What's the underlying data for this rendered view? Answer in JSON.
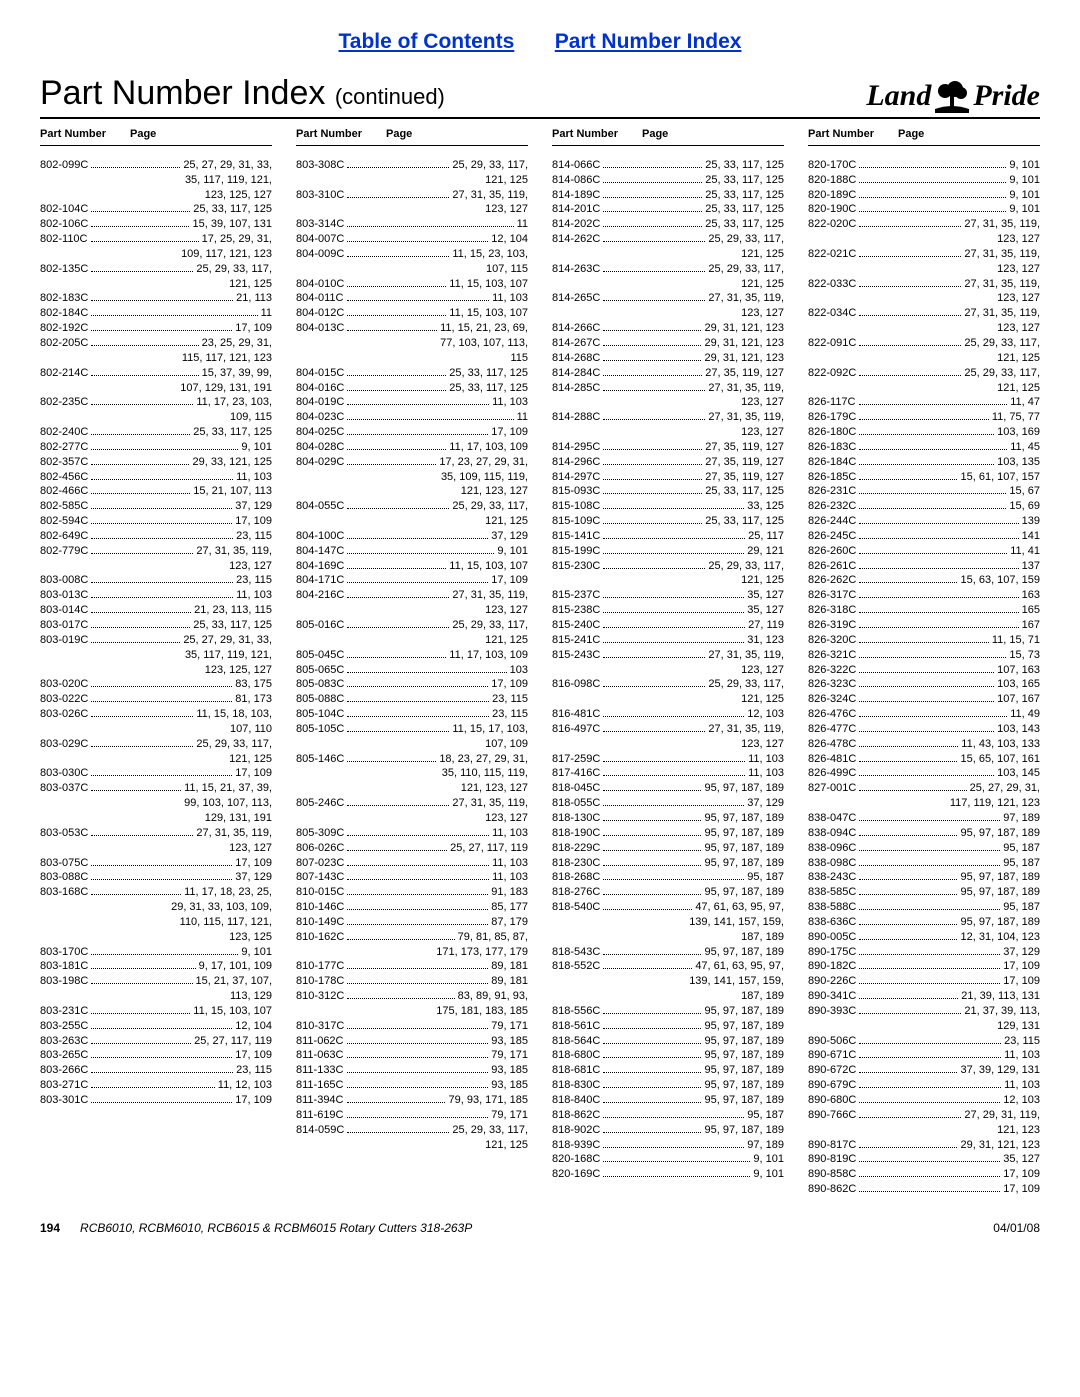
{
  "links": {
    "toc": "Table of Contents",
    "pni": "Part Number Index"
  },
  "title": "Part Number Index",
  "title_cont": "(continued)",
  "logo": {
    "left": "Land",
    "right": "Pride"
  },
  "column_header": {
    "pn": "Part Number",
    "pg": "Page"
  },
  "columns": [
    [
      {
        "pn": "802-099C",
        "pg": "25, 27, 29, 31, 33, 35, 117, 119, 121, 123, 125, 127"
      },
      {
        "pn": "802-104C",
        "pg": "25, 33, 117, 125"
      },
      {
        "pn": "802-106C",
        "pg": "15, 39, 107, 131"
      },
      {
        "pn": "802-110C",
        "pg": "17, 25, 29, 31, 109, 117, 121, 123"
      },
      {
        "pn": "802-135C",
        "pg": "25, 29, 33, 117, 121, 125"
      },
      {
        "pn": "802-183C",
        "pg": "21, 113"
      },
      {
        "pn": "802-184C",
        "pg": "11"
      },
      {
        "pn": "802-192C",
        "pg": "17, 109"
      },
      {
        "pn": "802-205C",
        "pg": "23, 25, 29, 31, 115, 117, 121, 123"
      },
      {
        "pn": "802-214C",
        "pg": "15, 37, 39, 99, 107, 129, 131, 191"
      },
      {
        "pn": "802-235C",
        "pg": "11, 17, 23, 103, 109, 115"
      },
      {
        "pn": "802-240C",
        "pg": "25, 33, 117, 125"
      },
      {
        "pn": "802-277C",
        "pg": "9, 101"
      },
      {
        "pn": "802-357C",
        "pg": "29, 33, 121, 125"
      },
      {
        "pn": "802-456C",
        "pg": "11, 103"
      },
      {
        "pn": "802-466C",
        "pg": "15, 21, 107, 113"
      },
      {
        "pn": "802-585C",
        "pg": "37, 129"
      },
      {
        "pn": "802-594C",
        "pg": "17, 109"
      },
      {
        "pn": "802-649C",
        "pg": "23, 115"
      },
      {
        "pn": "802-779C",
        "pg": "27, 31, 35, 119, 123, 127"
      },
      {
        "pn": "803-008C",
        "pg": "23, 115"
      },
      {
        "pn": "803-013C",
        "pg": "11, 103"
      },
      {
        "pn": "803-014C",
        "pg": "21, 23, 113, 115"
      },
      {
        "pn": "803-017C",
        "pg": "25, 33, 117, 125"
      },
      {
        "pn": "803-019C",
        "pg": "25, 27, 29, 31, 33, 35, 117, 119, 121, 123, 125, 127"
      },
      {
        "pn": "803-020C",
        "pg": "83, 175"
      },
      {
        "pn": "803-022C",
        "pg": "81, 173"
      },
      {
        "pn": "803-026C",
        "pg": "11, 15, 18, 103, 107, 110"
      },
      {
        "pn": "803-029C",
        "pg": "25, 29, 33, 117, 121, 125"
      },
      {
        "pn": "803-030C",
        "pg": "17, 109"
      },
      {
        "pn": "803-037C",
        "pg": "11, 15, 21, 37, 39, 99, 103, 107, 113, 129, 131, 191"
      },
      {
        "pn": "803-053C",
        "pg": "27, 31, 35, 119, 123, 127"
      },
      {
        "pn": "803-075C",
        "pg": "17, 109"
      },
      {
        "pn": "803-088C",
        "pg": "37, 129"
      },
      {
        "pn": "803-168C",
        "pg": "11, 17, 18, 23, 25, 29, 31, 33, 103, 109, 110, 115, 117, 121, 123, 125"
      },
      {
        "pn": "803-170C",
        "pg": "9, 101"
      },
      {
        "pn": "803-181C",
        "pg": "9, 17, 101, 109"
      },
      {
        "pn": "803-198C",
        "pg": "15, 21, 37, 107, 113, 129"
      },
      {
        "pn": "803-231C",
        "pg": "11, 15, 103, 107"
      },
      {
        "pn": "803-255C",
        "pg": "12, 104"
      },
      {
        "pn": "803-263C",
        "pg": "25, 27, 117, 119"
      },
      {
        "pn": "803-265C",
        "pg": "17, 109"
      },
      {
        "pn": "803-266C",
        "pg": "23, 115"
      },
      {
        "pn": "803-271C",
        "pg": "11, 12, 103"
      },
      {
        "pn": "803-301C",
        "pg": "17, 109"
      }
    ],
    [
      {
        "pn": "803-308C",
        "pg": "25, 29, 33, 117, 121, 125"
      },
      {
        "pn": "803-310C",
        "pg": "27, 31, 35, 119, 123, 127"
      },
      {
        "pn": "803-314C",
        "pg": "11"
      },
      {
        "pn": "804-007C",
        "pg": "12, 104"
      },
      {
        "pn": "804-009C",
        "pg": "11, 15, 23, 103, 107, 115"
      },
      {
        "pn": "804-010C",
        "pg": "11, 15, 103, 107"
      },
      {
        "pn": "804-011C",
        "pg": "11, 103"
      },
      {
        "pn": "804-012C",
        "pg": "11, 15, 103, 107"
      },
      {
        "pn": "804-013C",
        "pg": "11, 15, 21, 23, 69, 77, 103, 107, 113, 115"
      },
      {
        "pn": "804-015C",
        "pg": "25, 33, 117, 125"
      },
      {
        "pn": "804-016C",
        "pg": "25, 33, 117, 125"
      },
      {
        "pn": "804-019C",
        "pg": "11, 103"
      },
      {
        "pn": "804-023C",
        "pg": "11"
      },
      {
        "pn": "804-025C",
        "pg": "17, 109"
      },
      {
        "pn": "804-028C",
        "pg": "11, 17, 103, 109"
      },
      {
        "pn": "804-029C",
        "pg": "17, 23, 27, 29, 31, 35, 109, 115, 119, 121, 123, 127"
      },
      {
        "pn": "804-055C",
        "pg": "25, 29, 33, 117, 121, 125"
      },
      {
        "pn": "804-100C",
        "pg": "37, 129"
      },
      {
        "pn": "804-147C",
        "pg": "9, 101"
      },
      {
        "pn": "804-169C",
        "pg": "11, 15, 103, 107"
      },
      {
        "pn": "804-171C",
        "pg": "17, 109"
      },
      {
        "pn": "804-216C",
        "pg": "27, 31, 35, 119, 123, 127"
      },
      {
        "pn": "805-016C",
        "pg": "25, 29, 33, 117, 121, 125"
      },
      {
        "pn": "805-045C",
        "pg": "11, 17, 103, 109"
      },
      {
        "pn": "805-065C",
        "pg": "103"
      },
      {
        "pn": "805-083C",
        "pg": "17, 109"
      },
      {
        "pn": "805-088C",
        "pg": "23, 115"
      },
      {
        "pn": "805-104C",
        "pg": "23, 115"
      },
      {
        "pn": "805-105C",
        "pg": "11, 15, 17, 103, 107, 109"
      },
      {
        "pn": "805-146C",
        "pg": "18, 23, 27, 29, 31, 35, 110, 115, 119, 121, 123, 127"
      },
      {
        "pn": "805-246C",
        "pg": "27, 31, 35, 119, 123, 127"
      },
      {
        "pn": "805-309C",
        "pg": "11, 103"
      },
      {
        "pn": "806-026C",
        "pg": "25, 27, 117, 119"
      },
      {
        "pn": "807-023C",
        "pg": "11, 103"
      },
      {
        "pn": "807-143C",
        "pg": "11, 103"
      },
      {
        "pn": "810-015C",
        "pg": "91, 183"
      },
      {
        "pn": "810-146C",
        "pg": "85, 177"
      },
      {
        "pn": "810-149C",
        "pg": "87, 179"
      },
      {
        "pn": "810-162C",
        "pg": "79, 81, 85, 87, 171, 173, 177, 179"
      },
      {
        "pn": "810-177C",
        "pg": "89, 181"
      },
      {
        "pn": "810-178C",
        "pg": "89, 181"
      },
      {
        "pn": "810-312C",
        "pg": "83, 89, 91, 93, 175, 181, 183, 185"
      },
      {
        "pn": "810-317C",
        "pg": "79, 171"
      },
      {
        "pn": "811-062C",
        "pg": "93, 185"
      },
      {
        "pn": "811-063C",
        "pg": "79, 171"
      },
      {
        "pn": "811-133C",
        "pg": "93, 185"
      },
      {
        "pn": "811-165C",
        "pg": "93, 185"
      },
      {
        "pn": "811-394C",
        "pg": "79, 93, 171, 185"
      },
      {
        "pn": "811-619C",
        "pg": "79, 171"
      },
      {
        "pn": "814-059C",
        "pg": "25, 29, 33, 117, 121, 125"
      }
    ],
    [
      {
        "pn": "814-066C",
        "pg": "25, 33, 117, 125"
      },
      {
        "pn": "814-086C",
        "pg": "25, 33, 117, 125"
      },
      {
        "pn": "814-189C",
        "pg": "25, 33, 117, 125"
      },
      {
        "pn": "814-201C",
        "pg": "25, 33, 117, 125"
      },
      {
        "pn": "814-202C",
        "pg": "25, 33, 117, 125"
      },
      {
        "pn": "814-262C",
        "pg": "25, 29, 33, 117, 121, 125"
      },
      {
        "pn": "814-263C",
        "pg": "25, 29, 33, 117, 121, 125"
      },
      {
        "pn": "814-265C",
        "pg": "27, 31, 35, 119, 123, 127"
      },
      {
        "pn": "814-266C",
        "pg": "29, 31, 121, 123"
      },
      {
        "pn": "814-267C",
        "pg": "29, 31, 121, 123"
      },
      {
        "pn": "814-268C",
        "pg": "29, 31, 121, 123"
      },
      {
        "pn": "814-284C",
        "pg": "27, 35, 119, 127"
      },
      {
        "pn": "814-285C",
        "pg": "27, 31, 35, 119, 123, 127"
      },
      {
        "pn": "814-288C",
        "pg": "27, 31, 35, 119, 123, 127"
      },
      {
        "pn": "814-295C",
        "pg": "27, 35, 119, 127"
      },
      {
        "pn": "814-296C",
        "pg": "27, 35, 119, 127"
      },
      {
        "pn": "814-297C",
        "pg": "27, 35, 119, 127"
      },
      {
        "pn": "815-093C",
        "pg": "25, 33, 117, 125"
      },
      {
        "pn": "815-108C",
        "pg": "33, 125"
      },
      {
        "pn": "815-109C",
        "pg": "25, 33, 117, 125"
      },
      {
        "pn": "815-141C",
        "pg": "25, 117"
      },
      {
        "pn": "815-199C",
        "pg": "29, 121"
      },
      {
        "pn": "815-230C",
        "pg": "25, 29, 33, 117, 121, 125"
      },
      {
        "pn": "815-237C",
        "pg": "35, 127"
      },
      {
        "pn": "815-238C",
        "pg": "35, 127"
      },
      {
        "pn": "815-240C",
        "pg": "27, 119"
      },
      {
        "pn": "815-241C",
        "pg": "31, 123"
      },
      {
        "pn": "815-243C",
        "pg": "27, 31, 35, 119, 123, 127"
      },
      {
        "pn": "816-098C",
        "pg": "25, 29, 33, 117, 121, 125"
      },
      {
        "pn": "816-481C",
        "pg": "12, 103"
      },
      {
        "pn": "816-497C",
        "pg": "27, 31, 35, 119, 123, 127"
      },
      {
        "pn": "817-259C",
        "pg": "11, 103"
      },
      {
        "pn": "817-416C",
        "pg": "11, 103"
      },
      {
        "pn": "818-045C",
        "pg": "95, 97, 187, 189"
      },
      {
        "pn": "818-055C",
        "pg": "37, 129"
      },
      {
        "pn": "818-130C",
        "pg": "95, 97, 187, 189"
      },
      {
        "pn": "818-190C",
        "pg": "95, 97, 187, 189"
      },
      {
        "pn": "818-229C",
        "pg": "95, 97, 187, 189"
      },
      {
        "pn": "818-230C",
        "pg": "95, 97, 187, 189"
      },
      {
        "pn": "818-268C",
        "pg": "95, 187"
      },
      {
        "pn": "818-276C",
        "pg": "95, 97, 187, 189"
      },
      {
        "pn": "818-540C",
        "pg": "47, 61, 63, 95, 97, 139, 141, 157, 159, 187, 189"
      },
      {
        "pn": "818-543C",
        "pg": "95, 97, 187, 189"
      },
      {
        "pn": "818-552C",
        "pg": "47, 61, 63, 95, 97, 139, 141, 157, 159, 187, 189"
      },
      {
        "pn": "818-556C",
        "pg": "95, 97, 187, 189"
      },
      {
        "pn": "818-561C",
        "pg": "95, 97, 187, 189"
      },
      {
        "pn": "818-564C",
        "pg": "95, 97, 187, 189"
      },
      {
        "pn": "818-680C",
        "pg": "95, 97, 187, 189"
      },
      {
        "pn": "818-681C",
        "pg": "95, 97, 187, 189"
      },
      {
        "pn": "818-830C",
        "pg": "95, 97, 187, 189"
      },
      {
        "pn": "818-840C",
        "pg": "95, 97, 187, 189"
      },
      {
        "pn": "818-862C",
        "pg": "95, 187"
      },
      {
        "pn": "818-902C",
        "pg": "95, 97, 187, 189"
      },
      {
        "pn": "818-939C",
        "pg": "97, 189"
      },
      {
        "pn": "820-168C",
        "pg": "9, 101"
      },
      {
        "pn": "820-169C",
        "pg": "9, 101"
      }
    ],
    [
      {
        "pn": "820-170C",
        "pg": "9, 101"
      },
      {
        "pn": "820-188C",
        "pg": "9, 101"
      },
      {
        "pn": "820-189C",
        "pg": "9, 101"
      },
      {
        "pn": "820-190C",
        "pg": "9, 101"
      },
      {
        "pn": "822-020C",
        "pg": "27, 31, 35, 119, 123, 127"
      },
      {
        "pn": "822-021C",
        "pg": "27, 31, 35, 119, 123, 127"
      },
      {
        "pn": "822-033C",
        "pg": "27, 31, 35, 119, 123, 127"
      },
      {
        "pn": "822-034C",
        "pg": "27, 31, 35, 119, 123, 127"
      },
      {
        "pn": "822-091C",
        "pg": "25, 29, 33, 117, 121, 125"
      },
      {
        "pn": "822-092C",
        "pg": "25, 29, 33, 117, 121, 125"
      },
      {
        "pn": "826-117C",
        "pg": "11, 47"
      },
      {
        "pn": "826-179C",
        "pg": "11, 75, 77"
      },
      {
        "pn": "826-180C",
        "pg": "103, 169"
      },
      {
        "pn": "826-183C",
        "pg": "11, 45"
      },
      {
        "pn": "826-184C",
        "pg": "103, 135"
      },
      {
        "pn": "826-185C",
        "pg": "15, 61, 107, 157"
      },
      {
        "pn": "826-231C",
        "pg": "15, 67"
      },
      {
        "pn": "826-232C",
        "pg": "15, 69"
      },
      {
        "pn": "826-244C",
        "pg": "139"
      },
      {
        "pn": "826-245C",
        "pg": "141"
      },
      {
        "pn": "826-260C",
        "pg": "11, 41"
      },
      {
        "pn": "826-261C",
        "pg": "137"
      },
      {
        "pn": "826-262C",
        "pg": "15, 63, 107, 159"
      },
      {
        "pn": "826-317C",
        "pg": "163"
      },
      {
        "pn": "826-318C",
        "pg": "165"
      },
      {
        "pn": "826-319C",
        "pg": "167"
      },
      {
        "pn": "826-320C",
        "pg": "11, 15, 71"
      },
      {
        "pn": "826-321C",
        "pg": "15, 73"
      },
      {
        "pn": "826-322C",
        "pg": "107, 163"
      },
      {
        "pn": "826-323C",
        "pg": "103, 165"
      },
      {
        "pn": "826-324C",
        "pg": "107, 167"
      },
      {
        "pn": "826-476C",
        "pg": "11, 49"
      },
      {
        "pn": "826-477C",
        "pg": "103, 143"
      },
      {
        "pn": "826-478C",
        "pg": "11, 43, 103, 133"
      },
      {
        "pn": "826-481C",
        "pg": "15, 65, 107, 161"
      },
      {
        "pn": "826-499C",
        "pg": "103, 145"
      },
      {
        "pn": "827-001C",
        "pg": "25, 27, 29, 31, 117, 119, 121, 123"
      },
      {
        "pn": "838-047C",
        "pg": "97, 189"
      },
      {
        "pn": "838-094C",
        "pg": "95, 97, 187, 189"
      },
      {
        "pn": "838-096C",
        "pg": "95, 187"
      },
      {
        "pn": "838-098C",
        "pg": "95, 187"
      },
      {
        "pn": "838-243C",
        "pg": "95, 97, 187, 189"
      },
      {
        "pn": "838-585C",
        "pg": "95, 97, 187, 189"
      },
      {
        "pn": "838-588C",
        "pg": "95, 187"
      },
      {
        "pn": "838-636C",
        "pg": "95, 97, 187, 189"
      },
      {
        "pn": "890-005C",
        "pg": "12, 31, 104, 123"
      },
      {
        "pn": "890-175C",
        "pg": "37, 129"
      },
      {
        "pn": "890-182C",
        "pg": "17, 109"
      },
      {
        "pn": "890-226C",
        "pg": "17, 109"
      },
      {
        "pn": "890-341C",
        "pg": "21, 39, 113, 131"
      },
      {
        "pn": "890-393C",
        "pg": "21, 37, 39, 113, 129, 131"
      },
      {
        "pn": "890-506C",
        "pg": "23, 115"
      },
      {
        "pn": "890-671C",
        "pg": "11, 103"
      },
      {
        "pn": "890-672C",
        "pg": "37, 39, 129, 131"
      },
      {
        "pn": "890-679C",
        "pg": "11, 103"
      },
      {
        "pn": "890-680C",
        "pg": "12, 103"
      },
      {
        "pn": "890-766C",
        "pg": "27, 29, 31, 119, 121, 123"
      },
      {
        "pn": "890-817C",
        "pg": "29, 31, 121, 123"
      },
      {
        "pn": "890-819C",
        "pg": "35, 127"
      },
      {
        "pn": "890-858C",
        "pg": "17, 109"
      },
      {
        "pn": "890-862C",
        "pg": "17, 109"
      }
    ]
  ],
  "footer": {
    "page": "194",
    "doc": "RCB6010, RCBM6010, RCB6015 & RCBM6015 Rotary Cutters 318-263P",
    "date": "04/01/08"
  },
  "layout": {
    "first_segment_max_chars": 19,
    "cont_segment_max_chars": 21
  }
}
